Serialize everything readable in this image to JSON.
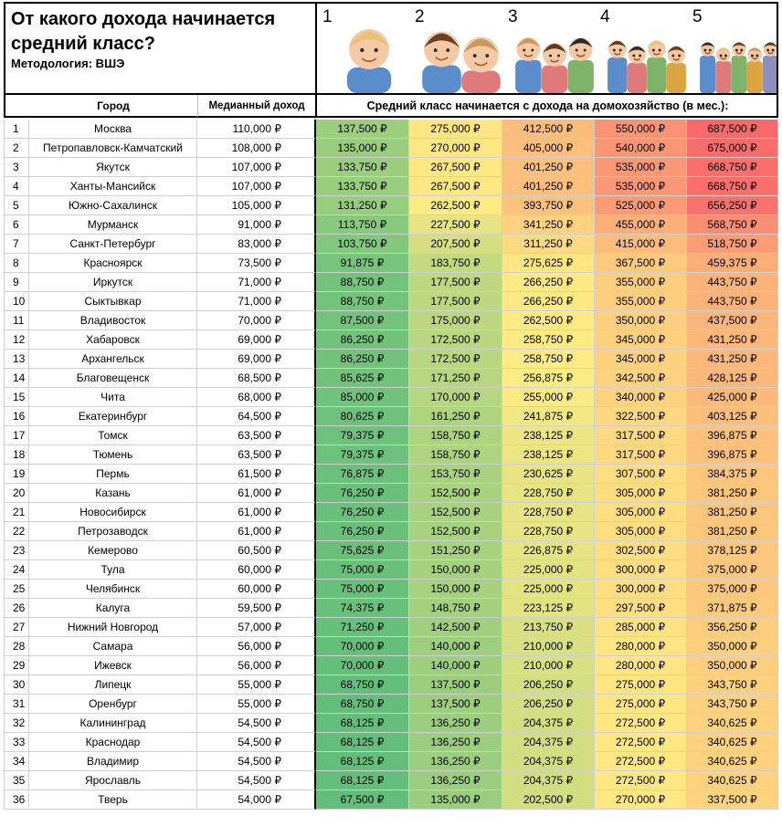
{
  "header": {
    "title": "От какого дохода начинается средний класс?",
    "subtitle": "Методология: ВШЭ",
    "household_sizes": [
      "1",
      "2",
      "3",
      "4",
      "5"
    ]
  },
  "table": {
    "columns": [
      "Город",
      "Медианный доход",
      "Средний класс начинается с дохода на домохозяйство (в мес.):"
    ],
    "rows": [
      [
        1,
        "Москва",
        "110,000 ₽",
        "137,500 ₽",
        "275,000 ₽",
        "412,500 ₽",
        "550,000 ₽",
        "687,500 ₽"
      ],
      [
        2,
        "Петропавловск-Камчатский",
        "108,000 ₽",
        "135,000 ₽",
        "270,000 ₽",
        "405,000 ₽",
        "540,000 ₽",
        "675,000 ₽"
      ],
      [
        3,
        "Якутск",
        "107,000 ₽",
        "133,750 ₽",
        "267,500 ₽",
        "401,250 ₽",
        "535,000 ₽",
        "668,750 ₽"
      ],
      [
        4,
        "Ханты-Мансийск",
        "107,000 ₽",
        "133,750 ₽",
        "267,500 ₽",
        "401,250 ₽",
        "535,000 ₽",
        "668,750 ₽"
      ],
      [
        5,
        "Южно-Сахалинск",
        "105,000 ₽",
        "131,250 ₽",
        "262,500 ₽",
        "393,750 ₽",
        "525,000 ₽",
        "656,250 ₽"
      ],
      [
        6,
        "Мурманск",
        "91,000 ₽",
        "113,750 ₽",
        "227,500 ₽",
        "341,250 ₽",
        "455,000 ₽",
        "568,750 ₽"
      ],
      [
        7,
        "Санкт-Петербург",
        "83,000 ₽",
        "103,750 ₽",
        "207,500 ₽",
        "311,250 ₽",
        "415,000 ₽",
        "518,750 ₽"
      ],
      [
        8,
        "Красноярск",
        "73,500 ₽",
        "91,875 ₽",
        "183,750 ₽",
        "275,625 ₽",
        "367,500 ₽",
        "459,375 ₽"
      ],
      [
        9,
        "Иркутск",
        "71,000 ₽",
        "88,750 ₽",
        "177,500 ₽",
        "266,250 ₽",
        "355,000 ₽",
        "443,750 ₽"
      ],
      [
        10,
        "Сыктывкар",
        "71,000 ₽",
        "88,750 ₽",
        "177,500 ₽",
        "266,250 ₽",
        "355,000 ₽",
        "443,750 ₽"
      ],
      [
        11,
        "Владивосток",
        "70,000 ₽",
        "87,500 ₽",
        "175,000 ₽",
        "262,500 ₽",
        "350,000 ₽",
        "437,500 ₽"
      ],
      [
        12,
        "Хабаровск",
        "69,000 ₽",
        "86,250 ₽",
        "172,500 ₽",
        "258,750 ₽",
        "345,000 ₽",
        "431,250 ₽"
      ],
      [
        13,
        "Архангельск",
        "69,000 ₽",
        "86,250 ₽",
        "172,500 ₽",
        "258,750 ₽",
        "345,000 ₽",
        "431,250 ₽"
      ],
      [
        14,
        "Благовещенск",
        "68,500 ₽",
        "85,625 ₽",
        "171,250 ₽",
        "256,875 ₽",
        "342,500 ₽",
        "428,125 ₽"
      ],
      [
        15,
        "Чита",
        "68,000 ₽",
        "85,000 ₽",
        "170,000 ₽",
        "255,000 ₽",
        "340,000 ₽",
        "425,000 ₽"
      ],
      [
        16,
        "Екатеринбург",
        "64,500 ₽",
        "80,625 ₽",
        "161,250 ₽",
        "241,875 ₽",
        "322,500 ₽",
        "403,125 ₽"
      ],
      [
        17,
        "Томск",
        "63,500 ₽",
        "79,375 ₽",
        "158,750 ₽",
        "238,125 ₽",
        "317,500 ₽",
        "396,875 ₽"
      ],
      [
        18,
        "Тюмень",
        "63,500 ₽",
        "79,375 ₽",
        "158,750 ₽",
        "238,125 ₽",
        "317,500 ₽",
        "396,875 ₽"
      ],
      [
        19,
        "Пермь",
        "61,500 ₽",
        "76,875 ₽",
        "153,750 ₽",
        "230,625 ₽",
        "307,500 ₽",
        "384,375 ₽"
      ],
      [
        20,
        "Казань",
        "61,000 ₽",
        "76,250 ₽",
        "152,500 ₽",
        "228,750 ₽",
        "305,000 ₽",
        "381,250 ₽"
      ],
      [
        21,
        "Новосибирск",
        "61,000 ₽",
        "76,250 ₽",
        "152,500 ₽",
        "228,750 ₽",
        "305,000 ₽",
        "381,250 ₽"
      ],
      [
        22,
        "Петрозаводск",
        "61,000 ₽",
        "76,250 ₽",
        "152,500 ₽",
        "228,750 ₽",
        "305,000 ₽",
        "381,250 ₽"
      ],
      [
        23,
        "Кемерово",
        "60,500 ₽",
        "75,625 ₽",
        "151,250 ₽",
        "226,875 ₽",
        "302,500 ₽",
        "378,125 ₽"
      ],
      [
        24,
        "Тула",
        "60,000 ₽",
        "75,000 ₽",
        "150,000 ₽",
        "225,000 ₽",
        "300,000 ₽",
        "375,000 ₽"
      ],
      [
        25,
        "Челябинск",
        "60,000 ₽",
        "75,000 ₽",
        "150,000 ₽",
        "225,000 ₽",
        "300,000 ₽",
        "375,000 ₽"
      ],
      [
        26,
        "Калуга",
        "59,500 ₽",
        "74,375 ₽",
        "148,750 ₽",
        "223,125 ₽",
        "297,500 ₽",
        "371,875 ₽"
      ],
      [
        27,
        "Нижний Новгород",
        "57,000 ₽",
        "71,250 ₽",
        "142,500 ₽",
        "213,750 ₽",
        "285,000 ₽",
        "356,250 ₽"
      ],
      [
        28,
        "Самара",
        "56,000 ₽",
        "70,000 ₽",
        "140,000 ₽",
        "210,000 ₽",
        "280,000 ₽",
        "350,000 ₽"
      ],
      [
        29,
        "Ижевск",
        "56,000 ₽",
        "70,000 ₽",
        "140,000 ₽",
        "210,000 ₽",
        "280,000 ₽",
        "350,000 ₽"
      ],
      [
        30,
        "Липецк",
        "55,000 ₽",
        "68,750 ₽",
        "137,500 ₽",
        "206,250 ₽",
        "275,000 ₽",
        "343,750 ₽"
      ],
      [
        31,
        "Оренбург",
        "55,000 ₽",
        "68,750 ₽",
        "137,500 ₽",
        "206,250 ₽",
        "275,000 ₽",
        "343,750 ₽"
      ],
      [
        32,
        "Калининград",
        "54,500 ₽",
        "68,125 ₽",
        "136,250 ₽",
        "204,375 ₽",
        "272,500 ₽",
        "340,625 ₽"
      ],
      [
        33,
        "Краснодар",
        "54,500 ₽",
        "68,125 ₽",
        "136,250 ₽",
        "204,375 ₽",
        "272,500 ₽",
        "340,625 ₽"
      ],
      [
        34,
        "Владимир",
        "54,500 ₽",
        "68,125 ₽",
        "136,250 ₽",
        "204,375 ₽",
        "272,500 ₽",
        "340,625 ₽"
      ],
      [
        35,
        "Ярославль",
        "54,500 ₽",
        "68,125 ₽",
        "136,250 ₽",
        "204,375 ₽",
        "272,500 ₽",
        "340,625 ₽"
      ],
      [
        36,
        "Тверь",
        "54,000 ₽",
        "67,500 ₽",
        "135,000 ₽",
        "202,500 ₽",
        "270,000 ₽",
        "337,500 ₽"
      ]
    ]
  }
}
